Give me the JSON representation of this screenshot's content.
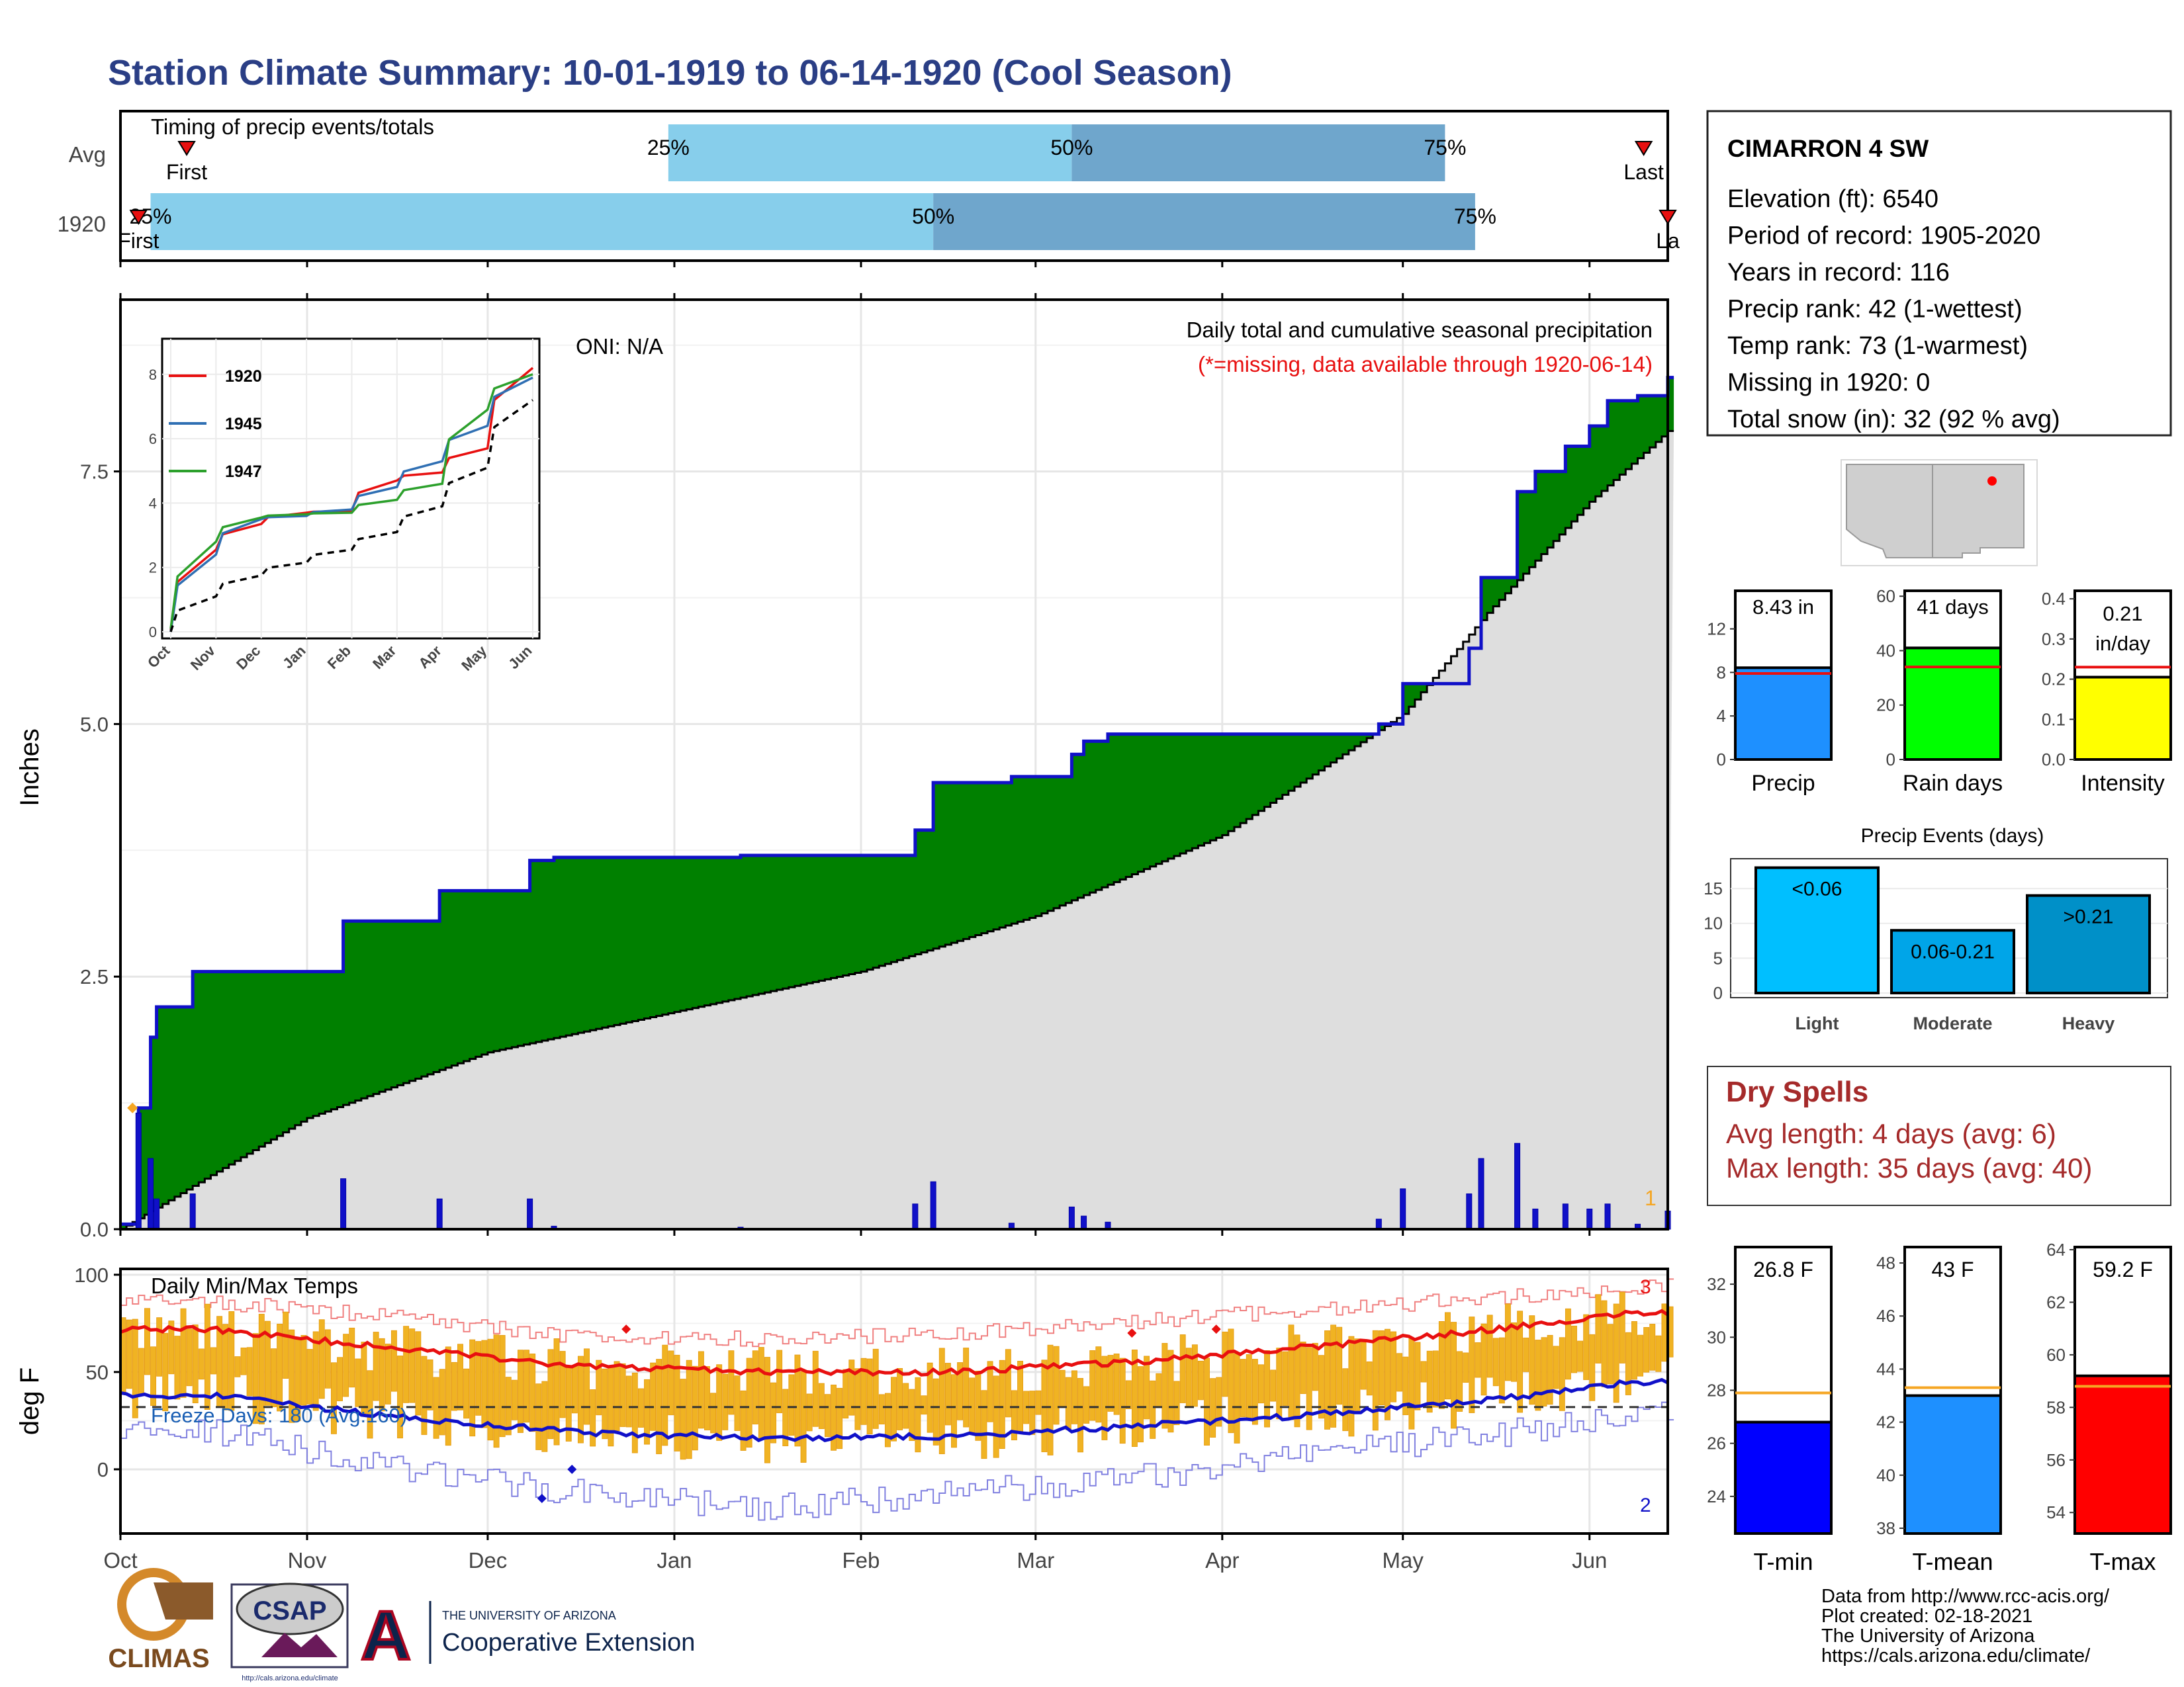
{
  "title": "Station Climate Summary: 10-01-1919 to 06-14-1920 (Cool Season)",
  "colors": {
    "title": "#2a3e85",
    "light_blue": "#87ceeb",
    "mid_blue": "#6fa6cc",
    "green": "#008000",
    "gray_fill": "#dedede",
    "navy": "#1010c8",
    "orange": "#f5a623",
    "red": "#e81010",
    "dry_red": "#a52a2a"
  },
  "timing_panel": {
    "label": "Timing of precip events/totals",
    "rows": [
      {
        "name": "Avg",
        "first": "First",
        "last": "Last",
        "p25_label": "25%",
        "p50_label": "50%",
        "p75_label": "75%",
        "p25_date": "1919-12-31",
        "p50_date": "1920-03-07",
        "p75_date": "1920-05-08",
        "first_date": "1919-10-12",
        "last_date": "1920-06-10"
      },
      {
        "name": "1920",
        "first": "First",
        "last": "La",
        "p25_label": "25%",
        "p50_label": "50%",
        "p75_label": "75%",
        "p25_date": "1919-10-06",
        "p50_date": "1920-02-13",
        "p75_date": "1920-05-13",
        "first_date": "1919-10-04",
        "last_date": "1920-06-14"
      }
    ]
  },
  "precip_panel": {
    "ylabel": "Inches",
    "oni": "ONI: N/A",
    "subtitle": "Daily total and cumulative seasonal precipitation",
    "missing_note": "(*=missing, data available through 1920-06-14)",
    "corner_number": "1",
    "yticks": [
      "0.0",
      "2.5",
      "5.0",
      "7.5"
    ],
    "ylim": [
      0,
      9.2
    ]
  },
  "inset": {
    "yticks": [
      "0",
      "2",
      "4",
      "6",
      "8"
    ],
    "xticks": [
      "Oct",
      "Nov",
      "Dec",
      "Jan",
      "Feb",
      "Mar",
      "Apr",
      "May",
      "Jun"
    ],
    "legend": [
      {
        "name": "1920",
        "color": "#e81010"
      },
      {
        "name": "1945",
        "color": "#2f6fb3"
      },
      {
        "name": "1947",
        "color": "#2ca02c"
      }
    ]
  },
  "temp_panel": {
    "ylabel": "deg F",
    "label": "Daily Min/Max Temps",
    "freeze": "Freeze Days: 180 (Avg:160)",
    "num_top": "3",
    "num_bottom": "2",
    "yticks": [
      "0",
      "50",
      "100"
    ],
    "ylim": [
      -33,
      103
    ]
  },
  "months": [
    "Oct",
    "Nov",
    "Dec",
    "Jan",
    "Feb",
    "Mar",
    "Apr",
    "May",
    "Jun"
  ],
  "station": {
    "name": "CIMARRON 4 SW",
    "lines": [
      "Elevation (ft): 6540",
      "Period of record: 1905-2020",
      "Years in record: 116",
      "Precip rank: 42 (1-wettest)",
      "Temp rank: 73 (1-warmest)",
      "Missing in 1920: 0",
      "Total snow (in): 32 (92 % avg)"
    ]
  },
  "summary_bars": [
    {
      "label": "Precip",
      "value_text": "8.43 in",
      "value": 8.43,
      "avg": 7.9,
      "ymax": 15.5,
      "ticks": [
        "0",
        "4",
        "8",
        "12"
      ],
      "tick_vals": [
        0,
        4,
        8,
        12
      ],
      "color": "#1e90ff"
    },
    {
      "label": "Rain days",
      "value_text": "41 days",
      "value": 41,
      "avg": 34,
      "ymax": 62,
      "ticks": [
        "0",
        "20",
        "40",
        "60"
      ],
      "tick_vals": [
        0,
        20,
        40,
        60
      ],
      "color": "#00ff00"
    },
    {
      "label": "Intensity",
      "value_text": "0.21",
      "value_text2": "in/day",
      "value": 0.205,
      "avg": 0.23,
      "ymax": 0.42,
      "ticks": [
        "0.0",
        "0.1",
        "0.2",
        "0.3",
        "0.4"
      ],
      "tick_vals": [
        0,
        0.1,
        0.2,
        0.3,
        0.4
      ],
      "color": "#ffff00"
    }
  ],
  "events": {
    "title": "Precip Events (days)",
    "yticks": [
      "0",
      "5",
      "10",
      "15"
    ],
    "bars": [
      {
        "label": "Light",
        "text": "<0.06",
        "value": 18,
        "color": "#00bfff"
      },
      {
        "label": "Moderate",
        "text": "0.06-0.21",
        "value": 9,
        "color": "#00a5e8"
      },
      {
        "label": "Heavy",
        "text": ">0.21",
        "value": 14,
        "color": "#0090c8"
      }
    ]
  },
  "dry_spells": {
    "title": "Dry Spells",
    "avg": "Avg length: 4 days (avg: 6)",
    "max": "Max length: 35 days (avg: 40)"
  },
  "temp_bars": [
    {
      "label": "T-min",
      "value_text": "26.8 F",
      "value": 26.8,
      "avg": 27.9,
      "ymin": 22.6,
      "ymax": 33.4,
      "ticks": [
        "24",
        "26",
        "28",
        "30",
        "32"
      ],
      "tick_vals": [
        24,
        26,
        28,
        30,
        32
      ],
      "color": "#0000ff"
    },
    {
      "label": "T-mean",
      "value_text": "43 F",
      "value": 43.0,
      "avg": 43.3,
      "ymin": 37.8,
      "ymax": 48.6,
      "ticks": [
        "38",
        "40",
        "42",
        "44",
        "46",
        "48"
      ],
      "tick_vals": [
        38,
        40,
        42,
        44,
        46,
        48
      ],
      "color": "#1e90ff"
    },
    {
      "label": "T-max",
      "value_text": "59.2 F",
      "value": 59.2,
      "avg": 58.8,
      "ymin": 53.2,
      "ymax": 64.1,
      "ticks": [
        "54",
        "56",
        "58",
        "60",
        "62",
        "64"
      ],
      "tick_vals": [
        54,
        56,
        58,
        60,
        62,
        64
      ],
      "color": "#ff0000"
    }
  ],
  "footer": {
    "lines": [
      "Data from http://www.rcc-acis.org/",
      "Plot created: 02-18-2021",
      "The University of Arizona",
      "https://cals.arizona.edu/climate/"
    ],
    "climas": "CLIMAS",
    "csap": "CSAP",
    "csap_url": "http://cals.arizona.edu/climate",
    "ua_small": "THE UNIVERSITY OF ARIZONA",
    "ua_big": "Cooperative Extension",
    "ua_letter": "A"
  },
  "chart_data": [
    {
      "type": "area",
      "title": "Daily total and cumulative seasonal precipitation",
      "ylabel": "Inches",
      "ylim": [
        0,
        9.2
      ],
      "series": [
        {
          "name": "cumulative_1920",
          "x": [
            "1919-10-01",
            "1919-10-04",
            "1919-10-06",
            "1919-10-07",
            "1919-10-13",
            "1919-11-07",
            "1919-11-23",
            "1919-12-08",
            "1919-12-12",
            "1920-01-12",
            "1920-02-10",
            "1920-02-13",
            "1920-02-26",
            "1920-03-07",
            "1920-03-09",
            "1920-03-13",
            "1920-04-27",
            "1920-05-01",
            "1920-05-12",
            "1920-05-14",
            "1920-05-20",
            "1920-05-23",
            "1920-05-28",
            "1920-06-01",
            "1920-06-04",
            "1920-06-09",
            "1920-06-14"
          ],
          "values": [
            0.05,
            1.2,
            1.9,
            2.2,
            2.55,
            3.05,
            3.35,
            3.65,
            3.68,
            3.7,
            3.95,
            4.42,
            4.48,
            4.7,
            4.83,
            4.9,
            5.0,
            5.4,
            5.75,
            6.45,
            7.3,
            7.5,
            7.75,
            7.95,
            8.2,
            8.25,
            8.43
          ]
        },
        {
          "name": "average_cumulative",
          "x": [
            "1919-10-01",
            "1919-10-15",
            "1919-11-01",
            "1919-12-01",
            "1920-01-01",
            "1920-02-01",
            "1920-03-01",
            "1920-04-01",
            "1920-05-01",
            "1920-05-15",
            "1920-06-01",
            "1920-06-14"
          ],
          "values": [
            0.0,
            0.5,
            1.1,
            1.75,
            2.15,
            2.55,
            3.1,
            3.9,
            5.1,
            6.1,
            7.2,
            7.9
          ]
        }
      ]
    },
    {
      "type": "line",
      "title": "",
      "x": [
        "Oct",
        "Nov",
        "Dec",
        "Jan",
        "Feb",
        "Mar",
        "Apr",
        "May",
        "Jun"
      ],
      "series": [
        {
          "name": "1920",
          "values": [
            0.05,
            2.55,
            3.35,
            3.7,
            3.75,
            4.7,
            4.95,
            5.7,
            8.2
          ]
        },
        {
          "name": "1945",
          "values": [
            0.0,
            2.4,
            3.5,
            3.6,
            3.8,
            4.5,
            5.3,
            6.4,
            7.9
          ]
        },
        {
          "name": "1947",
          "values": [
            0.1,
            2.8,
            3.55,
            3.65,
            3.7,
            4.1,
            4.6,
            6.9,
            8.0
          ]
        },
        {
          "name": "average",
          "values": [
            0.0,
            1.1,
            1.75,
            2.15,
            2.55,
            3.1,
            3.9,
            5.1,
            7.2
          ]
        }
      ]
    },
    {
      "type": "bar",
      "title": "Daily Min/Max Temps",
      "ylabel": "deg F",
      "ylim": [
        -33,
        103
      ],
      "x": [
        "Oct",
        "Nov",
        "Dec",
        "Jan",
        "Feb",
        "Mar",
        "Apr",
        "May",
        "Jun"
      ],
      "series": [
        {
          "name": "avg_max",
          "values": [
            72,
            62,
            53,
            50,
            50,
            55,
            63,
            72,
            80
          ]
        },
        {
          "name": "avg_min",
          "values": [
            38,
            27,
            19,
            16,
            17,
            22,
            28,
            36,
            45
          ]
        },
        {
          "name": "record_max",
          "values": [
            86,
            78,
            68,
            67,
            70,
            76,
            82,
            88,
            94
          ]
        },
        {
          "name": "record_min",
          "values": [
            20,
            0,
            -12,
            -20,
            -12,
            -5,
            8,
            18,
            28
          ]
        }
      ]
    }
  ]
}
